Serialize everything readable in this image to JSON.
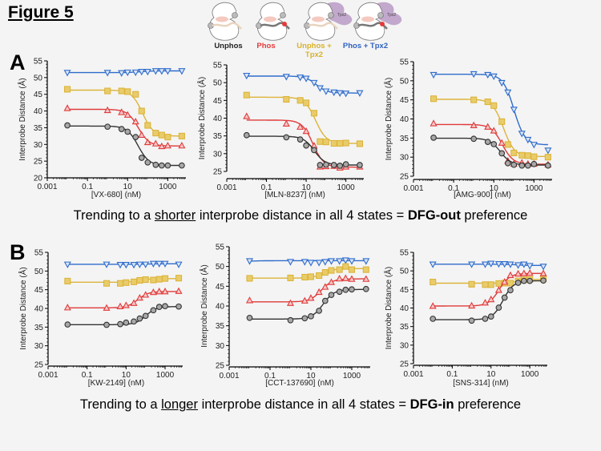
{
  "figure_title": "Figure 5",
  "panels": [
    {
      "letter": "A",
      "caption_pre": "Trending to a ",
      "caption_emph": "shorter",
      "caption_mid": " interprobe distance in all 4 states = ",
      "caption_bold": "DFG-out",
      "caption_post": " preference"
    },
    {
      "letter": "B",
      "caption_pre": "Trending to a ",
      "caption_emph": "longer",
      "caption_mid": " interprobe distance in all 4 states = ",
      "caption_bold": "DFG-in",
      "caption_post": " preference"
    }
  ],
  "states": [
    {
      "label": "Unphos",
      "color": "#222222"
    },
    {
      "label": "Phos",
      "color": "#e8393a"
    },
    {
      "label": "Unphos +\nTpx2",
      "color": "#d9b22a"
    },
    {
      "label": "Phos + Tpx2",
      "color": "#2f62c0"
    }
  ],
  "cartoon_text": "Tpx2",
  "colors": {
    "blue": "#2f6ccc",
    "yellow": "#dcb43a",
    "yellow_fill": "#e9cc6a",
    "red": "#e03a3a",
    "black": "#333333",
    "black_fill": "#a8a8a8"
  },
  "chart_data": [
    {
      "type": "scatter",
      "title": "",
      "xlabel": "[VX-680] (nM)",
      "ylabel": "Interprobe Distance (Å)",
      "xscale": "log",
      "xlim": [
        0.001,
        8000
      ],
      "ylim": [
        20,
        55
      ],
      "xticks": [
        "0.001",
        "0.1",
        "10",
        "1000"
      ],
      "yticks": [
        "20",
        "25",
        "30",
        "35",
        "40",
        "45",
        "50",
        "55"
      ],
      "x": [
        0.01,
        1,
        5,
        10,
        25,
        50,
        100,
        250,
        500,
        1000,
        5000
      ],
      "series": [
        {
          "name": "Phos + Tpx2",
          "marker": "triangle-down",
          "values": [
            51.5,
            51.5,
            51.4,
            51.6,
            51.6,
            51.8,
            51.8,
            52,
            52,
            52,
            52
          ]
        },
        {
          "name": "Unphos + Tpx2",
          "marker": "square",
          "values": [
            46.5,
            46,
            46,
            45.8,
            45,
            40,
            35.7,
            33.4,
            32.8,
            32.2,
            32.5
          ]
        },
        {
          "name": "Phos",
          "marker": "triangle-up",
          "values": [
            40.8,
            40.2,
            39.6,
            38.8,
            36.8,
            32.8,
            30.6,
            30.2,
            29.4,
            29.6,
            29.6
          ]
        },
        {
          "name": "Unphos",
          "marker": "circle",
          "values": [
            35.7,
            35.3,
            34.6,
            33.8,
            32.2,
            26,
            24.6,
            23.9,
            23.7,
            23.7,
            23.7
          ]
        }
      ]
    },
    {
      "type": "scatter",
      "title": "",
      "xlabel": "[MLN-8237] (nM)",
      "ylabel": "Interprobe Distance (Å)",
      "xscale": "log",
      "xlim": [
        0.001,
        8000
      ],
      "ylim": [
        25,
        55
      ],
      "xticks": [
        "0.001",
        "0.1",
        "10",
        "1000"
      ],
      "yticks": [
        "25",
        "30",
        "35",
        "40",
        "45",
        "50",
        "55"
      ],
      "x": [
        0.01,
        1,
        5,
        10,
        25,
        50,
        100,
        250,
        500,
        1000,
        5000
      ],
      "series": [
        {
          "name": "Phos + Tpx2",
          "marker": "triangle-down",
          "values": [
            52,
            51.7,
            51.5,
            51.2,
            50,
            48.5,
            47.6,
            47.3,
            47.1,
            47,
            47.1
          ]
        },
        {
          "name": "Unphos + Tpx2",
          "marker": "square",
          "values": [
            46.5,
            45.3,
            45,
            44.3,
            41.4,
            33.4,
            33.3,
            32.9,
            32.9,
            33,
            32.8
          ]
        },
        {
          "name": "Phos",
          "marker": "triangle-up",
          "values": [
            40.5,
            38.4,
            37.5,
            36.3,
            32.2,
            26.3,
            26.4,
            26.5,
            26,
            26.3,
            26.3
          ]
        },
        {
          "name": "Unphos",
          "marker": "circle",
          "values": [
            35.2,
            34.6,
            34,
            32.3,
            31,
            26.8,
            26.9,
            26.8,
            26.6,
            27,
            26.8
          ]
        }
      ]
    },
    {
      "type": "scatter",
      "title": "",
      "xlabel": "[AMG-900] (nM)",
      "ylabel": "Interprobe Distance (Å)",
      "xscale": "log",
      "xlim": [
        0.001,
        8000
      ],
      "ylim": [
        25,
        55
      ],
      "xticks": [
        "0.001",
        "0.1",
        "10",
        "1000"
      ],
      "yticks": [
        "25",
        "30",
        "35",
        "40",
        "45",
        "50",
        "55"
      ],
      "x": [
        0.01,
        1,
        5,
        10,
        25,
        50,
        100,
        250,
        500,
        1000,
        5000
      ],
      "series": [
        {
          "name": "Phos + Tpx2",
          "marker": "triangle-down",
          "values": [
            51.6,
            51.8,
            51.6,
            51.2,
            49.5,
            47,
            42.5,
            36.2,
            34.6,
            33.3,
            31.8
          ]
        },
        {
          "name": "Unphos + Tpx2",
          "marker": "square",
          "values": [
            45.3,
            45,
            44.5,
            43.5,
            39.3,
            33.3,
            31.1,
            30.5,
            30.4,
            30.1,
            30
          ]
        },
        {
          "name": "Phos",
          "marker": "triangle-up",
          "values": [
            38.8,
            38.3,
            37.9,
            36.9,
            33.7,
            29,
            28.2,
            28.5,
            28.2,
            28.2,
            28
          ]
        },
        {
          "name": "Unphos",
          "marker": "circle",
          "values": [
            35.1,
            34.8,
            34,
            33.4,
            31,
            28.4,
            28,
            27.8,
            27.8,
            28.2,
            27.8
          ]
        }
      ]
    },
    {
      "type": "scatter",
      "title": "",
      "xlabel": "[KW-2149] (nM)",
      "ylabel": "Interprobe Distance (Å)",
      "xscale": "log",
      "xlim": [
        0.001,
        8000
      ],
      "ylim": [
        25,
        55
      ],
      "xticks": [
        "0.001",
        "0.1",
        "10",
        "1000"
      ],
      "yticks": [
        "25",
        "30",
        "35",
        "40",
        "45",
        "50",
        "55"
      ],
      "x": [
        0.01,
        1,
        5,
        10,
        25,
        50,
        100,
        250,
        500,
        1000,
        5000
      ],
      "series": [
        {
          "name": "Phos + Tpx2",
          "marker": "triangle-down",
          "values": [
            51.8,
            51.8,
            51.7,
            51.7,
            51.7,
            51.8,
            51.8,
            52,
            52,
            52,
            51.8
          ]
        },
        {
          "name": "Unphos + Tpx2",
          "marker": "square",
          "values": [
            47.3,
            46.7,
            46.7,
            46.9,
            47.1,
            47.5,
            47.7,
            47.6,
            47.8,
            48,
            48.1
          ]
        },
        {
          "name": "Phos",
          "marker": "triangle-up",
          "values": [
            40.2,
            40.1,
            40.5,
            40.8,
            41.4,
            42.8,
            43.6,
            44.3,
            44.5,
            44.5,
            44.6
          ]
        },
        {
          "name": "Unphos",
          "marker": "circle",
          "values": [
            35.7,
            35.6,
            35.8,
            36.2,
            36.5,
            37.3,
            38,
            39.5,
            40.4,
            40.6,
            40.5
          ]
        }
      ]
    },
    {
      "type": "scatter",
      "title": "",
      "xlabel": "[CCT-137690] (nM)",
      "ylabel": "Interprobe Distance (Å)",
      "xscale": "log",
      "xlim": [
        0.001,
        8000
      ],
      "ylim": [
        25,
        55
      ],
      "xticks": [
        "0.001",
        "0.1",
        "10",
        "1000"
      ],
      "yticks": [
        "25",
        "30",
        "35",
        "40",
        "45",
        "50",
        "55"
      ],
      "x": [
        0.01,
        1,
        5,
        10,
        25,
        50,
        100,
        250,
        500,
        1000,
        5000
      ],
      "series": [
        {
          "name": "Phos + Tpx2",
          "marker": "triangle-down",
          "values": [
            51.4,
            51.2,
            51.2,
            51,
            51,
            51.2,
            51.4,
            51.4,
            51.6,
            51.4,
            51.4
          ]
        },
        {
          "name": "Unphos + Tpx2",
          "marker": "square",
          "values": [
            47,
            47.1,
            47.3,
            47.4,
            47.7,
            48.5,
            49,
            49.2,
            50,
            49.2,
            49.2
          ]
        },
        {
          "name": "Phos",
          "marker": "triangle-up",
          "values": [
            41.4,
            40.7,
            41.3,
            42,
            43.5,
            44.8,
            46,
            46.9,
            47,
            46.8,
            46.8
          ]
        },
        {
          "name": "Unphos",
          "marker": "circle",
          "values": [
            37,
            36.4,
            36.9,
            37.4,
            38.8,
            41.3,
            42.8,
            43.6,
            44.1,
            44.2,
            44.3
          ]
        }
      ]
    },
    {
      "type": "scatter",
      "title": "",
      "xlabel": "[SNS-314] (nM)",
      "ylabel": "Interprobe Distance (Å)",
      "xscale": "log",
      "xlim": [
        0.001,
        8000
      ],
      "ylim": [
        25,
        55
      ],
      "xticks": [
        "0.001",
        "0.1",
        "10",
        "1000"
      ],
      "yticks": [
        "25",
        "30",
        "35",
        "40",
        "45",
        "50",
        "55"
      ],
      "x": [
        0.01,
        1,
        5,
        10,
        25,
        50,
        100,
        250,
        500,
        1000,
        5000
      ],
      "series": [
        {
          "name": "Phos + Tpx2",
          "marker": "triangle-down",
          "values": [
            51.8,
            51.8,
            51.8,
            52,
            51.9,
            51.9,
            51.8,
            51.6,
            51.8,
            51.4,
            51.2
          ]
        },
        {
          "name": "Unphos + Tpx2",
          "marker": "square",
          "values": [
            47,
            46.4,
            46.3,
            46.3,
            46.6,
            46.7,
            46.7,
            47.3,
            47.6,
            47.7,
            47.8
          ]
        },
        {
          "name": "Phos",
          "marker": "triangle-up",
          "values": [
            40.5,
            40.6,
            41.4,
            42.3,
            44.8,
            47,
            48.8,
            49.2,
            49.3,
            49.4,
            49.3
          ]
        },
        {
          "name": "Unphos",
          "marker": "circle",
          "values": [
            37.1,
            36.6,
            37.1,
            37.7,
            40.1,
            42.8,
            44.8,
            46.8,
            47.3,
            47.3,
            47.4
          ]
        }
      ]
    }
  ]
}
